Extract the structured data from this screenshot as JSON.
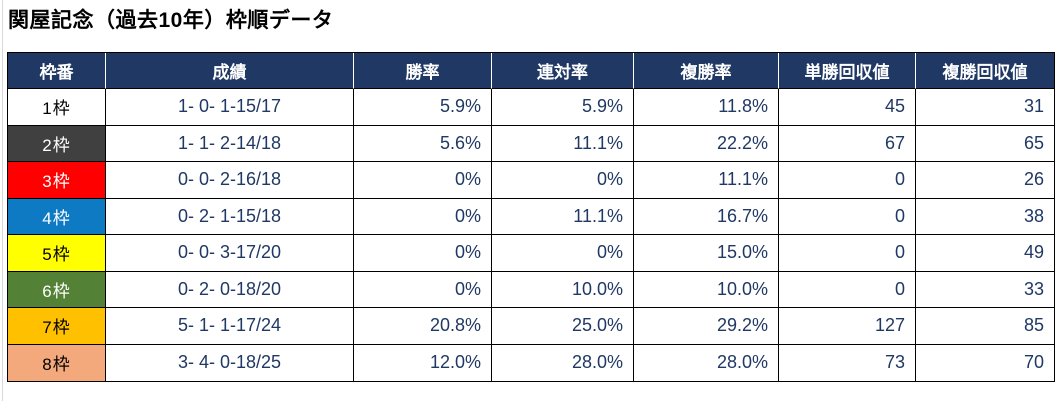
{
  "title": "関屋記念（過去10年）枠順データ",
  "chart_data": {
    "type": "table",
    "title": "関屋記念（過去10年）枠順データ",
    "columns": [
      "枠番",
      "成績",
      "勝率",
      "連対率",
      "複勝率",
      "単勝回収値",
      "複勝回収値"
    ],
    "rows": [
      [
        "1枠",
        "1- 0- 1-15/17",
        "5.9%",
        "5.9%",
        "11.8%",
        "45",
        "31"
      ],
      [
        "2枠",
        "1- 1- 2-14/18",
        "5.6%",
        "11.1%",
        "22.2%",
        "67",
        "65"
      ],
      [
        "3枠",
        "0- 0- 2-16/18",
        "0%",
        "0%",
        "11.1%",
        "0",
        "26"
      ],
      [
        "4枠",
        "0- 2- 1-15/18",
        "0%",
        "11.1%",
        "16.7%",
        "0",
        "38"
      ],
      [
        "5枠",
        "0- 0- 3-17/20",
        "0%",
        "0%",
        "15.0%",
        "0",
        "49"
      ],
      [
        "6枠",
        "0- 2- 0-18/20",
        "0%",
        "10.0%",
        "10.0%",
        "0",
        "33"
      ],
      [
        "7枠",
        "5- 1- 1-17/24",
        "20.8%",
        "25.0%",
        "29.2%",
        "127",
        "85"
      ],
      [
        "8枠",
        "3- 4- 0-18/25",
        "12.0%",
        "28.0%",
        "28.0%",
        "73",
        "70"
      ]
    ],
    "waku_colors": [
      {
        "bg": "#ffffff",
        "fg": "#000000"
      },
      {
        "bg": "#404040",
        "fg": "#ffffff"
      },
      {
        "bg": "#ff0000",
        "fg": "#ffffff"
      },
      {
        "bg": "#0e7ac4",
        "fg": "#ffffff"
      },
      {
        "bg": "#ffff00",
        "fg": "#000000"
      },
      {
        "bg": "#538135",
        "fg": "#ffffff"
      },
      {
        "bg": "#ffc000",
        "fg": "#000000"
      },
      {
        "bg": "#f4a97d",
        "fg": "#000000"
      }
    ],
    "style": {
      "header_bg": "#1f3864",
      "header_fg": "#ffffff",
      "data_fg": "#1f3864",
      "border": "#000000"
    },
    "layout": {
      "legend": "none",
      "grid": "table-borders"
    }
  }
}
